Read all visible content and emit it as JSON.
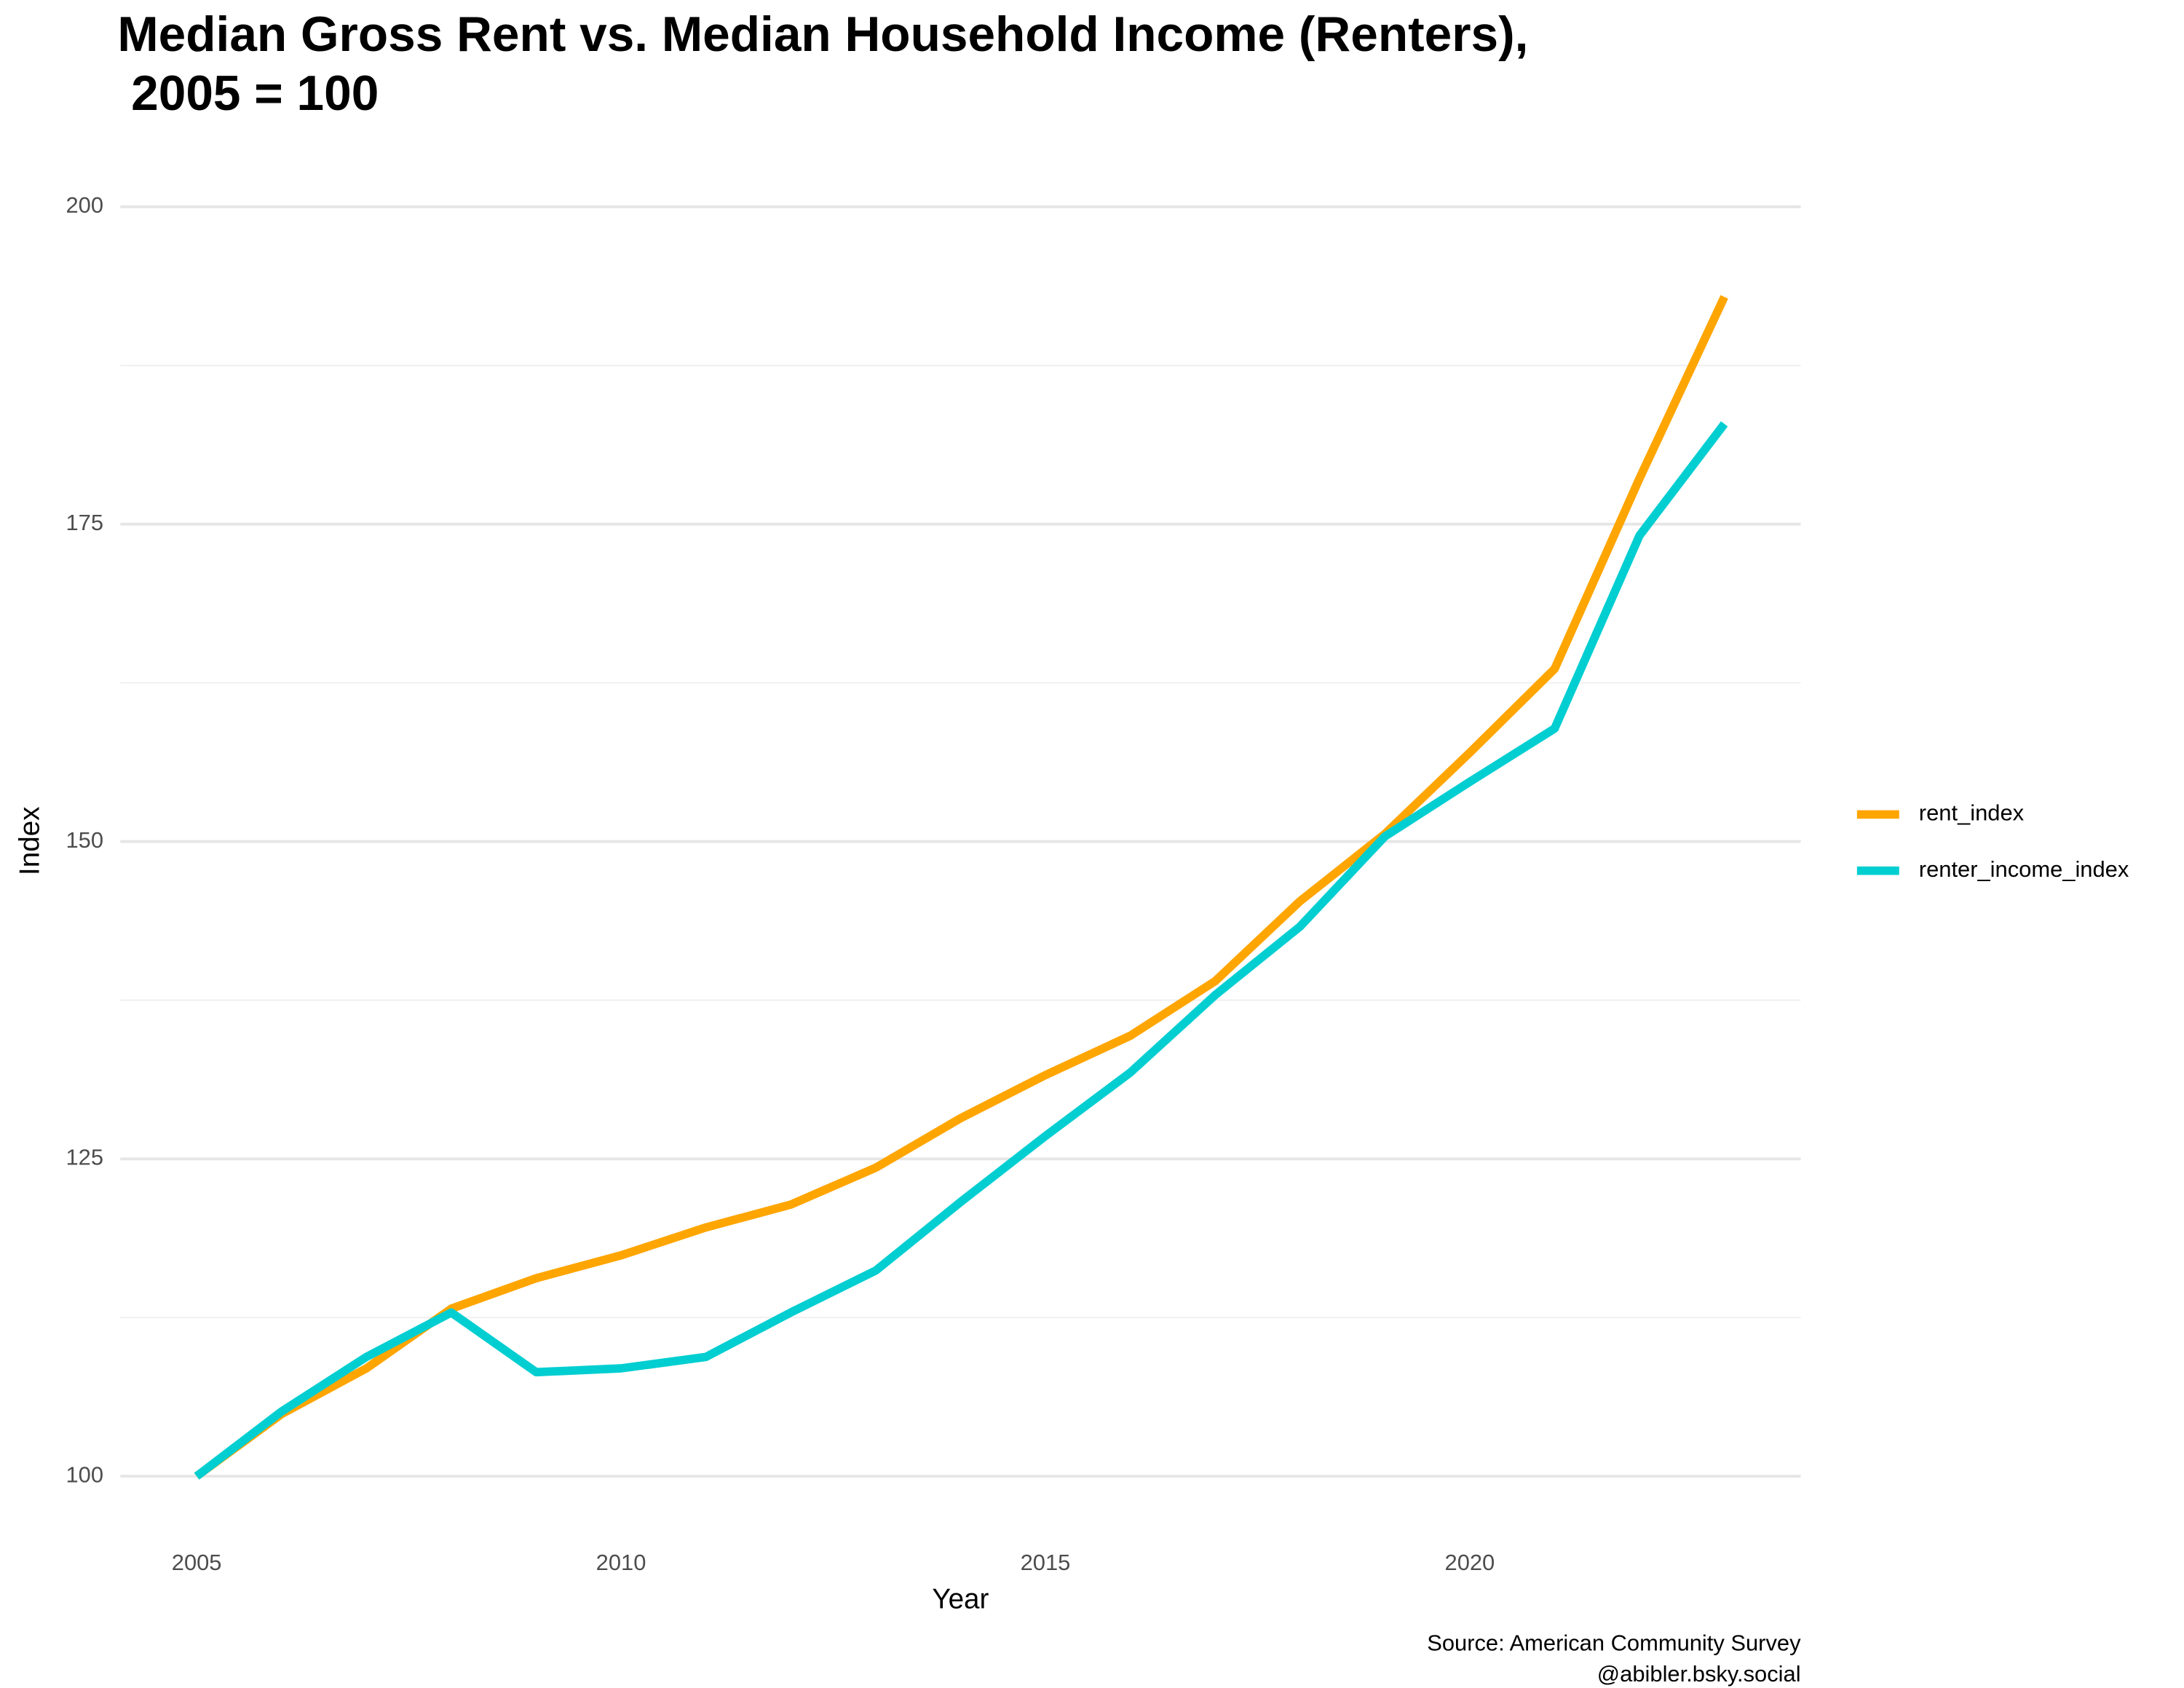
{
  "chart_data": {
    "type": "line",
    "title": [
      "Median Gross Rent vs. Median Household Income (Renters),",
      " 2005 = 100"
    ],
    "x_label": "Year",
    "y_label": "Index",
    "caption": [
      "Source: American Community Survey",
      "@abibler.bsky.social"
    ],
    "x": [
      2005,
      2006,
      2007,
      2008,
      2009,
      2010,
      2011,
      2012,
      2013,
      2014,
      2015,
      2016,
      2017,
      2018,
      2019,
      2020,
      2021,
      2022,
      2023
    ],
    "series": [
      {
        "name": "rent_index",
        "color": "#FFA500",
        "values": [
          100,
          104.9,
          108.5,
          113.2,
          115.6,
          117.4,
          119.6,
          121.4,
          124.3,
          128.2,
          131.6,
          134.7,
          139.0,
          145.3,
          150.6,
          157.0,
          163.6,
          178.6,
          192.9
        ]
      },
      {
        "name": "renter_income_index",
        "color": "#00CED1",
        "values": [
          100,
          105.1,
          109.4,
          112.9,
          108.2,
          108.5,
          109.4,
          112.9,
          116.2,
          121.6,
          126.8,
          131.8,
          137.9,
          143.3,
          150.4,
          154.7,
          158.9,
          174.1,
          182.9
        ]
      }
    ],
    "xlim": [
      2004.1,
      2023.9
    ],
    "xticks": [
      2005,
      2010,
      2015,
      2020
    ],
    "ylim": [
      95,
      200
    ],
    "yticks": [
      100,
      125,
      150,
      175,
      200
    ],
    "y_minor_grid": [
      112.5,
      137.5,
      162.5,
      187.5
    ],
    "grid": true,
    "legend": "right"
  }
}
